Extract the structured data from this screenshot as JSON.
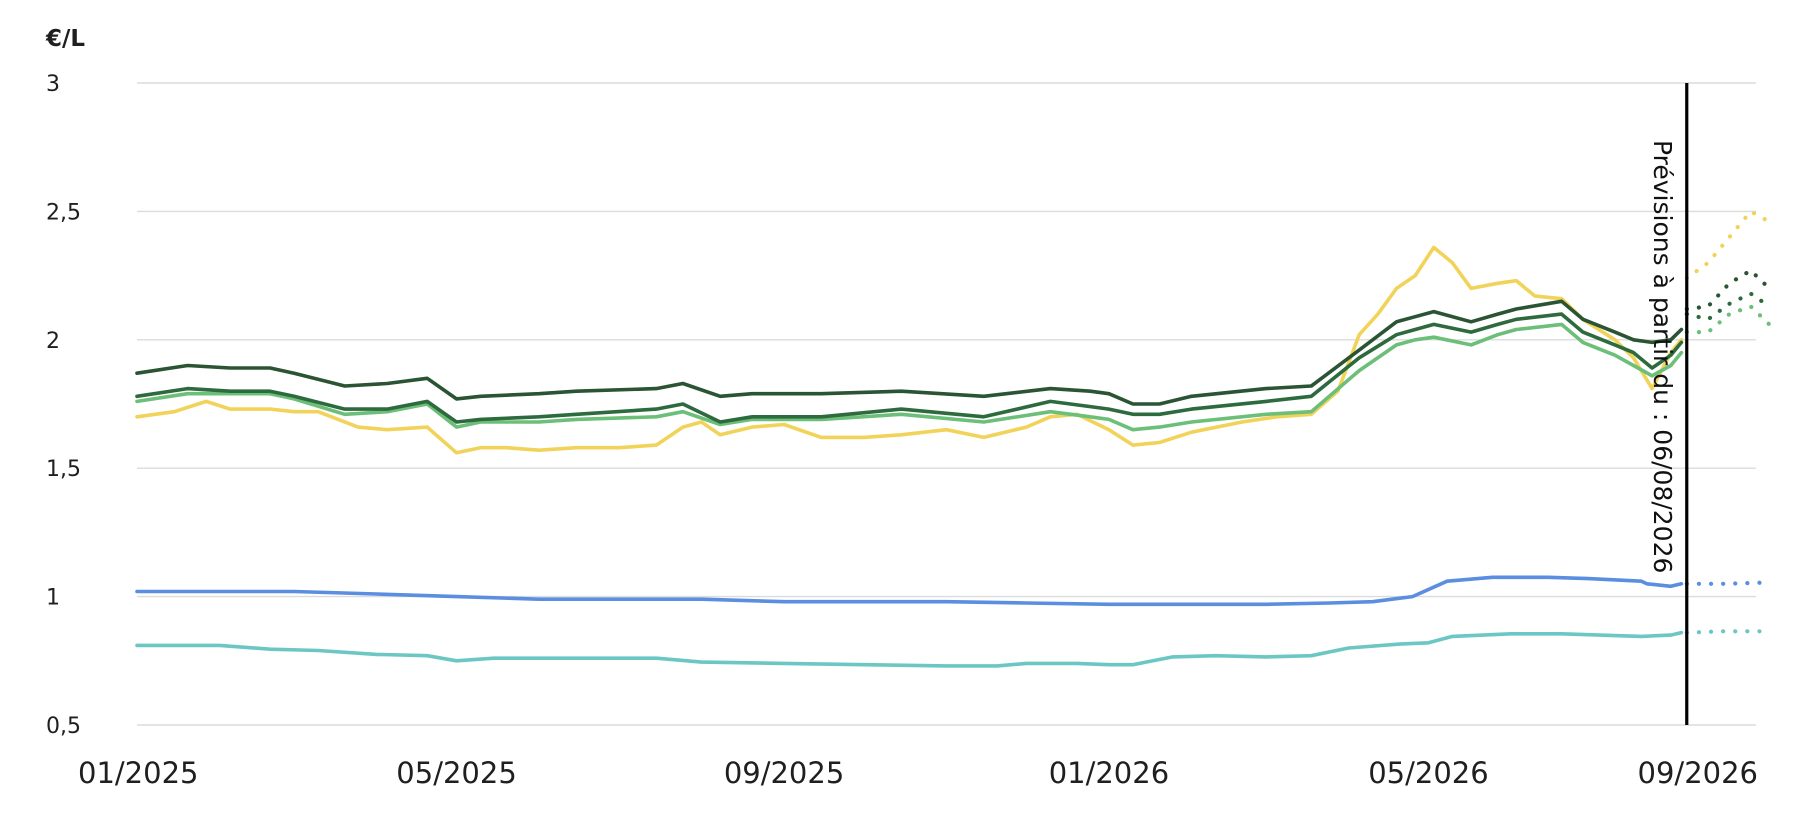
{
  "chart_data": {
    "type": "line",
    "title": "",
    "xlabel": "",
    "ylabel": "€/L",
    "ylim": [
      0.5,
      3
    ],
    "yticks": [
      {
        "value": 0.5,
        "label": "0,5"
      },
      {
        "value": 1,
        "label": "1"
      },
      {
        "value": 1.5,
        "label": "1,5"
      },
      {
        "value": 2,
        "label": "2"
      },
      {
        "value": 2.5,
        "label": "2,5"
      },
      {
        "value": 3,
        "label": "3"
      }
    ],
    "xlim": [
      "2025-01-01",
      "2026-09-01"
    ],
    "xticks": [
      {
        "value": "2025-01-01",
        "label": "01/2025"
      },
      {
        "value": "2025-05-01",
        "label": "05/2025"
      },
      {
        "value": "2025-09-01",
        "label": "09/2025"
      },
      {
        "value": "2026-01-01",
        "label": "01/2026"
      },
      {
        "value": "2026-05-01",
        "label": "05/2026"
      },
      {
        "value": "2026-09-01",
        "label": "09/2026"
      }
    ],
    "grid": true,
    "legend": "none",
    "forecast_marker": {
      "date": "2026-08-06",
      "label": "Prévisions à partir du : 06/08/2026"
    },
    "series": [
      {
        "color": "#f2d35a",
        "points": [
          [
            "2025-01-01",
            1.7
          ],
          [
            "2025-01-15",
            1.72
          ],
          [
            "2025-01-27",
            1.76
          ],
          [
            "2025-02-05",
            1.73
          ],
          [
            "2025-02-20",
            1.73
          ],
          [
            "2025-03-01",
            1.72
          ],
          [
            "2025-03-10",
            1.72
          ],
          [
            "2025-03-25",
            1.66
          ],
          [
            "2025-04-05",
            1.65
          ],
          [
            "2025-04-20",
            1.66
          ],
          [
            "2025-05-01",
            1.56
          ],
          [
            "2025-05-10",
            1.58
          ],
          [
            "2025-05-20",
            1.58
          ],
          [
            "2025-06-01",
            1.57
          ],
          [
            "2025-06-15",
            1.58
          ],
          [
            "2025-07-01",
            1.58
          ],
          [
            "2025-07-15",
            1.59
          ],
          [
            "2025-07-25",
            1.66
          ],
          [
            "2025-08-01",
            1.68
          ],
          [
            "2025-08-08",
            1.63
          ],
          [
            "2025-08-20",
            1.66
          ],
          [
            "2025-09-01",
            1.67
          ],
          [
            "2025-09-15",
            1.62
          ],
          [
            "2025-10-01",
            1.62
          ],
          [
            "2025-10-15",
            1.63
          ],
          [
            "2025-11-01",
            1.65
          ],
          [
            "2025-11-15",
            1.62
          ],
          [
            "2025-12-01",
            1.66
          ],
          [
            "2025-12-10",
            1.7
          ],
          [
            "2025-12-20",
            1.71
          ],
          [
            "2026-01-01",
            1.65
          ],
          [
            "2026-01-10",
            1.59
          ],
          [
            "2026-01-20",
            1.6
          ],
          [
            "2026-02-01",
            1.64
          ],
          [
            "2026-02-20",
            1.68
          ],
          [
            "2026-03-05",
            1.7
          ],
          [
            "2026-03-18",
            1.71
          ],
          [
            "2026-03-28",
            1.8
          ],
          [
            "2026-04-05",
            2.02
          ],
          [
            "2026-04-12",
            2.1
          ],
          [
            "2026-04-19",
            2.2
          ],
          [
            "2026-04-26",
            2.25
          ],
          [
            "2026-05-03",
            2.36
          ],
          [
            "2026-05-10",
            2.3
          ],
          [
            "2026-05-17",
            2.2
          ],
          [
            "2026-05-27",
            2.22
          ],
          [
            "2026-06-03",
            2.23
          ],
          [
            "2026-06-10",
            2.17
          ],
          [
            "2026-06-20",
            2.16
          ],
          [
            "2026-06-28",
            2.08
          ],
          [
            "2026-07-10",
            2.0
          ],
          [
            "2026-07-17",
            1.93
          ],
          [
            "2026-07-24",
            1.81
          ],
          [
            "2026-07-31",
            1.95
          ],
          [
            "2026-08-04",
            2.0
          ]
        ],
        "forecast": [
          [
            "2026-08-06",
            2.24
          ],
          [
            "2026-08-14",
            2.3
          ],
          [
            "2026-08-22",
            2.4
          ],
          [
            "2026-08-30",
            2.5
          ],
          [
            "2026-09-06",
            2.46
          ]
        ]
      },
      {
        "color": "#6cbf78",
        "points": [
          [
            "2025-01-01",
            1.76
          ],
          [
            "2025-01-20",
            1.79
          ],
          [
            "2025-02-05",
            1.79
          ],
          [
            "2025-02-20",
            1.79
          ],
          [
            "2025-03-01",
            1.77
          ],
          [
            "2025-03-20",
            1.71
          ],
          [
            "2025-04-05",
            1.72
          ],
          [
            "2025-04-20",
            1.75
          ],
          [
            "2025-05-01",
            1.66
          ],
          [
            "2025-05-10",
            1.68
          ],
          [
            "2025-06-01",
            1.68
          ],
          [
            "2025-06-15",
            1.69
          ],
          [
            "2025-07-15",
            1.7
          ],
          [
            "2025-07-25",
            1.72
          ],
          [
            "2025-08-08",
            1.67
          ],
          [
            "2025-08-20",
            1.69
          ],
          [
            "2025-09-01",
            1.69
          ],
          [
            "2025-09-15",
            1.69
          ],
          [
            "2025-10-15",
            1.71
          ],
          [
            "2025-11-15",
            1.68
          ],
          [
            "2025-12-10",
            1.72
          ],
          [
            "2025-12-25",
            1.7
          ],
          [
            "2026-01-01",
            1.69
          ],
          [
            "2026-01-10",
            1.65
          ],
          [
            "2026-01-20",
            1.66
          ],
          [
            "2026-02-01",
            1.68
          ],
          [
            "2026-03-01",
            1.71
          ],
          [
            "2026-03-18",
            1.72
          ],
          [
            "2026-04-05",
            1.88
          ],
          [
            "2026-04-19",
            1.98
          ],
          [
            "2026-04-26",
            2.0
          ],
          [
            "2026-05-03",
            2.01
          ],
          [
            "2026-05-17",
            1.98
          ],
          [
            "2026-05-27",
            2.02
          ],
          [
            "2026-06-03",
            2.04
          ],
          [
            "2026-06-20",
            2.06
          ],
          [
            "2026-06-28",
            1.99
          ],
          [
            "2026-07-10",
            1.94
          ],
          [
            "2026-07-17",
            1.9
          ],
          [
            "2026-07-24",
            1.86
          ],
          [
            "2026-07-31",
            1.9
          ],
          [
            "2026-08-04",
            1.95
          ]
        ],
        "forecast": [
          [
            "2026-08-06",
            2.03
          ],
          [
            "2026-08-14",
            2.03
          ],
          [
            "2026-08-22",
            2.1
          ],
          [
            "2026-08-30",
            2.13
          ],
          [
            "2026-09-06",
            2.06
          ]
        ]
      },
      {
        "color": "#2d6b3e",
        "points": [
          [
            "2025-01-01",
            1.78
          ],
          [
            "2025-01-20",
            1.81
          ],
          [
            "2025-02-05",
            1.8
          ],
          [
            "2025-02-20",
            1.8
          ],
          [
            "2025-03-01",
            1.78
          ],
          [
            "2025-03-20",
            1.73
          ],
          [
            "2025-04-05",
            1.73
          ],
          [
            "2025-04-20",
            1.76
          ],
          [
            "2025-05-01",
            1.68
          ],
          [
            "2025-05-10",
            1.69
          ],
          [
            "2025-06-01",
            1.7
          ],
          [
            "2025-06-15",
            1.71
          ],
          [
            "2025-07-15",
            1.73
          ],
          [
            "2025-07-25",
            1.75
          ],
          [
            "2025-08-08",
            1.68
          ],
          [
            "2025-08-20",
            1.7
          ],
          [
            "2025-09-01",
            1.7
          ],
          [
            "2025-09-15",
            1.7
          ],
          [
            "2025-10-15",
            1.73
          ],
          [
            "2025-11-15",
            1.7
          ],
          [
            "2025-12-10",
            1.76
          ],
          [
            "2025-12-25",
            1.74
          ],
          [
            "2026-01-01",
            1.73
          ],
          [
            "2026-01-10",
            1.71
          ],
          [
            "2026-01-20",
            1.71
          ],
          [
            "2026-02-01",
            1.73
          ],
          [
            "2026-03-01",
            1.76
          ],
          [
            "2026-03-18",
            1.78
          ],
          [
            "2026-04-05",
            1.93
          ],
          [
            "2026-04-19",
            2.02
          ],
          [
            "2026-04-26",
            2.04
          ],
          [
            "2026-05-03",
            2.06
          ],
          [
            "2026-05-17",
            2.03
          ],
          [
            "2026-05-27",
            2.06
          ],
          [
            "2026-06-03",
            2.08
          ],
          [
            "2026-06-20",
            2.1
          ],
          [
            "2026-06-28",
            2.03
          ],
          [
            "2026-07-10",
            1.98
          ],
          [
            "2026-07-17",
            1.95
          ],
          [
            "2026-07-24",
            1.89
          ],
          [
            "2026-07-31",
            1.94
          ],
          [
            "2026-08-04",
            1.99
          ]
        ],
        "forecast": [
          [
            "2026-08-06",
            2.1
          ],
          [
            "2026-08-14",
            2.08
          ],
          [
            "2026-08-22",
            2.14
          ],
          [
            "2026-08-30",
            2.18
          ],
          [
            "2026-09-06",
            2.13
          ]
        ]
      },
      {
        "color": "#2a5433",
        "points": [
          [
            "2025-01-01",
            1.87
          ],
          [
            "2025-01-20",
            1.9
          ],
          [
            "2025-02-05",
            1.89
          ],
          [
            "2025-02-20",
            1.89
          ],
          [
            "2025-03-01",
            1.87
          ],
          [
            "2025-03-20",
            1.82
          ],
          [
            "2025-04-05",
            1.83
          ],
          [
            "2025-04-20",
            1.85
          ],
          [
            "2025-05-01",
            1.77
          ],
          [
            "2025-05-10",
            1.78
          ],
          [
            "2025-06-01",
            1.79
          ],
          [
            "2025-06-15",
            1.8
          ],
          [
            "2025-07-15",
            1.81
          ],
          [
            "2025-07-25",
            1.83
          ],
          [
            "2025-08-08",
            1.78
          ],
          [
            "2025-08-20",
            1.79
          ],
          [
            "2025-09-01",
            1.79
          ],
          [
            "2025-09-15",
            1.79
          ],
          [
            "2025-10-15",
            1.8
          ],
          [
            "2025-11-15",
            1.78
          ],
          [
            "2025-12-10",
            1.81
          ],
          [
            "2025-12-25",
            1.8
          ],
          [
            "2026-01-01",
            1.79
          ],
          [
            "2026-01-10",
            1.75
          ],
          [
            "2026-01-20",
            1.75
          ],
          [
            "2026-02-01",
            1.78
          ],
          [
            "2026-03-01",
            1.81
          ],
          [
            "2026-03-18",
            1.82
          ],
          [
            "2026-04-05",
            1.96
          ],
          [
            "2026-04-19",
            2.07
          ],
          [
            "2026-04-26",
            2.09
          ],
          [
            "2026-05-03",
            2.11
          ],
          [
            "2026-05-17",
            2.07
          ],
          [
            "2026-05-27",
            2.1
          ],
          [
            "2026-06-03",
            2.12
          ],
          [
            "2026-06-20",
            2.15
          ],
          [
            "2026-06-28",
            2.08
          ],
          [
            "2026-07-10",
            2.03
          ],
          [
            "2026-07-17",
            2.0
          ],
          [
            "2026-07-24",
            1.99
          ],
          [
            "2026-07-31",
            2.0
          ],
          [
            "2026-08-04",
            2.04
          ]
        ],
        "forecast": [
          [
            "2026-08-06",
            2.12
          ],
          [
            "2026-08-14",
            2.13
          ],
          [
            "2026-08-22",
            2.22
          ],
          [
            "2026-08-30",
            2.27
          ],
          [
            "2026-09-06",
            2.2
          ]
        ]
      },
      {
        "color": "#5b8ee0",
        "points": [
          [
            "2025-01-01",
            1.02
          ],
          [
            "2025-02-01",
            1.02
          ],
          [
            "2025-03-01",
            1.02
          ],
          [
            "2025-04-01",
            1.01
          ],
          [
            "2025-05-01",
            1.0
          ],
          [
            "2025-06-01",
            0.99
          ],
          [
            "2025-07-01",
            0.99
          ],
          [
            "2025-08-01",
            0.99
          ],
          [
            "2025-09-01",
            0.98
          ],
          [
            "2025-10-01",
            0.98
          ],
          [
            "2025-11-01",
            0.98
          ],
          [
            "2025-12-01",
            0.975
          ],
          [
            "2026-01-01",
            0.97
          ],
          [
            "2026-02-01",
            0.97
          ],
          [
            "2026-03-01",
            0.97
          ],
          [
            "2026-03-25",
            0.975
          ],
          [
            "2026-04-10",
            0.98
          ],
          [
            "2026-04-25",
            1.0
          ],
          [
            "2026-05-08",
            1.06
          ],
          [
            "2026-05-25",
            1.075
          ],
          [
            "2026-06-15",
            1.075
          ],
          [
            "2026-06-30",
            1.07
          ],
          [
            "2026-07-20",
            1.06
          ],
          [
            "2026-07-22",
            1.05
          ],
          [
            "2026-07-31",
            1.04
          ],
          [
            "2026-08-04",
            1.05
          ]
        ],
        "forecast": [
          [
            "2026-08-06",
            1.05
          ],
          [
            "2026-08-20",
            1.05
          ],
          [
            "2026-09-06",
            1.055
          ]
        ]
      },
      {
        "color": "#6cc7c4",
        "points": [
          [
            "2025-01-01",
            0.81
          ],
          [
            "2025-02-01",
            0.81
          ],
          [
            "2025-02-20",
            0.795
          ],
          [
            "2025-03-10",
            0.79
          ],
          [
            "2025-04-01",
            0.775
          ],
          [
            "2025-04-20",
            0.77
          ],
          [
            "2025-05-01",
            0.75
          ],
          [
            "2025-05-15",
            0.76
          ],
          [
            "2025-06-15",
            0.76
          ],
          [
            "2025-07-15",
            0.76
          ],
          [
            "2025-08-01",
            0.745
          ],
          [
            "2025-09-01",
            0.74
          ],
          [
            "2025-10-01",
            0.735
          ],
          [
            "2025-11-01",
            0.73
          ],
          [
            "2025-11-20",
            0.73
          ],
          [
            "2025-12-01",
            0.74
          ],
          [
            "2025-12-20",
            0.74
          ],
          [
            "2026-01-01",
            0.735
          ],
          [
            "2026-01-10",
            0.735
          ],
          [
            "2026-01-25",
            0.765
          ],
          [
            "2026-02-10",
            0.77
          ],
          [
            "2026-03-01",
            0.765
          ],
          [
            "2026-03-18",
            0.77
          ],
          [
            "2026-04-01",
            0.8
          ],
          [
            "2026-04-20",
            0.815
          ],
          [
            "2026-05-01",
            0.82
          ],
          [
            "2026-05-10",
            0.845
          ],
          [
            "2026-06-01",
            0.855
          ],
          [
            "2026-06-20",
            0.855
          ],
          [
            "2026-07-20",
            0.845
          ],
          [
            "2026-07-31",
            0.85
          ],
          [
            "2026-08-04",
            0.86
          ]
        ],
        "forecast": [
          [
            "2026-08-06",
            0.86
          ],
          [
            "2026-08-20",
            0.865
          ],
          [
            "2026-09-06",
            0.865
          ]
        ]
      }
    ]
  }
}
